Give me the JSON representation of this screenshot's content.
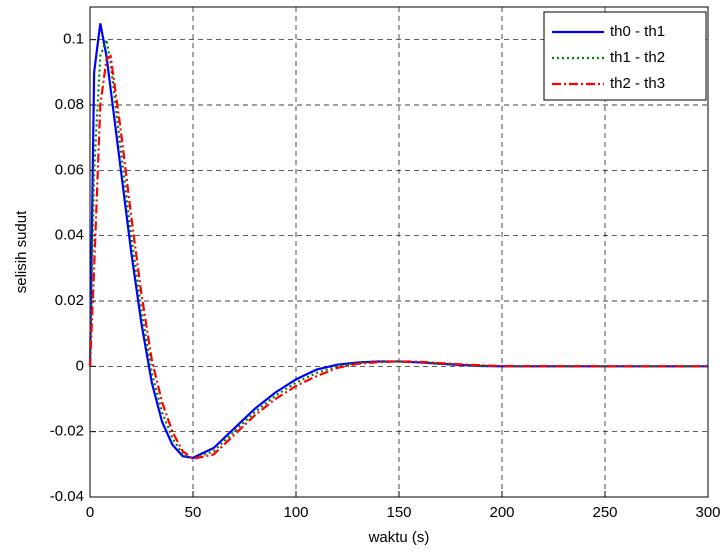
{
  "chart_data": {
    "type": "line",
    "xlabel": "waktu (s)",
    "ylabel": "selisih sudut",
    "x": [
      0,
      2,
      5,
      8,
      10,
      15,
      20,
      25,
      30,
      35,
      40,
      45,
      50,
      60,
      70,
      80,
      90,
      100,
      110,
      120,
      130,
      140,
      150,
      160,
      170,
      180,
      190,
      200,
      250,
      300
    ],
    "series": [
      {
        "name": "th0 - th1",
        "color": "#0000ff",
        "linestyle": "solid",
        "values": [
          0,
          0.09,
          0.105,
          0.095,
          0.085,
          0.06,
          0.035,
          0.013,
          -0.005,
          -0.017,
          -0.024,
          -0.0275,
          -0.028,
          -0.025,
          -0.019,
          -0.013,
          -0.008,
          -0.004,
          -0.001,
          0.0005,
          0.0012,
          0.0015,
          0.0015,
          0.0012,
          0.0008,
          0.0004,
          0.0001,
          0,
          0,
          0
        ]
      },
      {
        "name": "th1 - th2",
        "color": "#008000",
        "linestyle": "dotted",
        "values": [
          0,
          0.06,
          0.095,
          0.1,
          0.093,
          0.066,
          0.04,
          0.017,
          -0.002,
          -0.014,
          -0.022,
          -0.027,
          -0.0282,
          -0.026,
          -0.02,
          -0.014,
          -0.009,
          -0.005,
          -0.002,
          0,
          0.001,
          0.0014,
          0.0015,
          0.0013,
          0.0009,
          0.0005,
          0.0002,
          0,
          0,
          0
        ]
      },
      {
        "name": "th2 - th3",
        "color": "#ff0000",
        "linestyle": "dashdot",
        "values": [
          0,
          0.03,
          0.08,
          0.094,
          0.095,
          0.072,
          0.046,
          0.022,
          0.002,
          -0.011,
          -0.02,
          -0.026,
          -0.0283,
          -0.027,
          -0.021,
          -0.015,
          -0.01,
          -0.006,
          -0.003,
          -0.0005,
          0.0008,
          0.0013,
          0.0015,
          0.0014,
          0.001,
          0.0006,
          0.0003,
          0.0001,
          0,
          0
        ]
      }
    ],
    "xlim": [
      0,
      300
    ],
    "xticks": [
      0,
      50,
      100,
      150,
      200,
      250,
      300
    ],
    "ylim": [
      -0.04,
      0.11
    ],
    "yticks": [
      -0.04,
      -0.02,
      0,
      0.02,
      0.04,
      0.06,
      0.08,
      0.1
    ],
    "grid": true,
    "legend": "upper right"
  }
}
